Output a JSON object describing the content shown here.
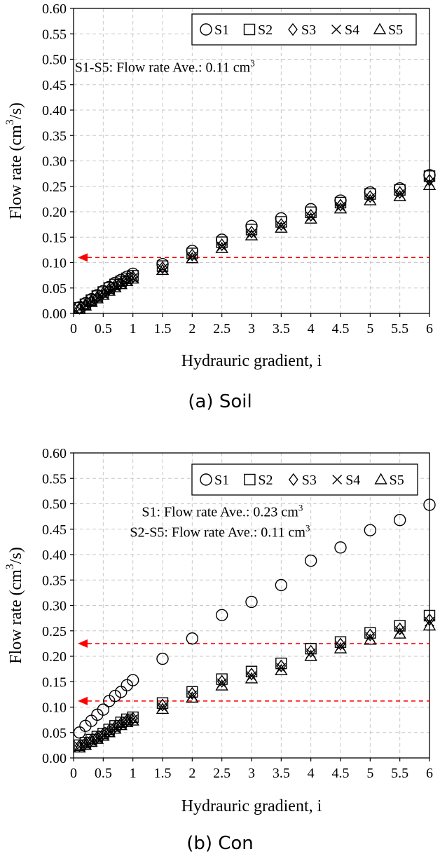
{
  "chart_data": [
    {
      "type": "scatter",
      "caption": "(a) Soil",
      "xlabel": "Hydrauric gradient, i",
      "ylabel": "Flow rate (cm³/s)",
      "xlim": [
        0,
        6
      ],
      "ylim": [
        0,
        0.6
      ],
      "x_ticks": [
        0,
        0.5,
        1,
        1.5,
        2,
        2.5,
        3,
        3.5,
        4,
        4.5,
        5,
        5.5,
        6
      ],
      "x_tick_labels": [
        "0",
        "0.5",
        "1",
        "1.5",
        "2",
        "2.5",
        "3",
        "3.5",
        "4",
        "4.5",
        "5",
        "5.5",
        "6"
      ],
      "y_ticks": [
        0,
        0.05,
        0.1,
        0.15,
        0.2,
        0.25,
        0.3,
        0.35,
        0.4,
        0.45,
        0.5,
        0.55,
        0.6
      ],
      "y_tick_labels": [
        "0.00",
        "0.05",
        "0.10",
        "0.15",
        "0.20",
        "0.25",
        "0.30",
        "0.35",
        "0.40",
        "0.45",
        "0.50",
        "0.55",
        "0.60"
      ],
      "grid": true,
      "legend_position": "top-right",
      "x": [
        0.1,
        0.2,
        0.3,
        0.4,
        0.5,
        0.6,
        0.7,
        0.8,
        0.9,
        1.0,
        1.5,
        2.0,
        2.5,
        3.0,
        3.5,
        4.0,
        4.5,
        5.0,
        5.5,
        6.0
      ],
      "series": [
        {
          "name": "S1",
          "marker": "circle",
          "values": [
            0.012,
            0.02,
            0.028,
            0.036,
            0.044,
            0.052,
            0.06,
            0.066,
            0.072,
            0.078,
            0.097,
            0.123,
            0.145,
            0.172,
            0.187,
            0.205,
            0.222,
            0.238,
            0.246,
            0.272
          ]
        },
        {
          "name": "S2",
          "marker": "square",
          "values": [
            0.011,
            0.018,
            0.026,
            0.034,
            0.042,
            0.05,
            0.057,
            0.063,
            0.069,
            0.074,
            0.093,
            0.118,
            0.14,
            0.165,
            0.18,
            0.199,
            0.218,
            0.235,
            0.243,
            0.27
          ]
        },
        {
          "name": "S3",
          "marker": "diamond",
          "values": [
            0.01,
            0.017,
            0.025,
            0.032,
            0.04,
            0.048,
            0.055,
            0.061,
            0.067,
            0.072,
            0.09,
            0.115,
            0.135,
            0.16,
            0.175,
            0.193,
            0.213,
            0.23,
            0.238,
            0.262
          ]
        },
        {
          "name": "S4",
          "marker": "x",
          "values": [
            0.009,
            0.016,
            0.024,
            0.031,
            0.038,
            0.046,
            0.053,
            0.059,
            0.065,
            0.07,
            0.088,
            0.112,
            0.132,
            0.157,
            0.172,
            0.19,
            0.21,
            0.227,
            0.235,
            0.258
          ]
        },
        {
          "name": "S5",
          "marker": "triangle",
          "values": [
            0.008,
            0.015,
            0.022,
            0.029,
            0.036,
            0.044,
            0.051,
            0.057,
            0.063,
            0.068,
            0.085,
            0.108,
            0.128,
            0.153,
            0.168,
            0.186,
            0.206,
            0.222,
            0.23,
            0.252
          ]
        }
      ],
      "reference_lines": [
        {
          "y": 0.11,
          "color": "#ff0000",
          "style": "dashed",
          "arrow": "left"
        }
      ],
      "annotations": [
        {
          "text": "S1-S5:  Flow rate Ave.: 0.11  cm³",
          "x": 0.02,
          "y": 0.475
        }
      ]
    },
    {
      "type": "scatter",
      "caption": "(b) Con",
      "xlabel": "Hydrauric gradient, i",
      "ylabel": "Flow rate (cm³/s)",
      "xlim": [
        0,
        6
      ],
      "ylim": [
        0,
        0.6
      ],
      "x_ticks": [
        0,
        0.5,
        1,
        1.5,
        2,
        2.5,
        3,
        3.5,
        4,
        4.5,
        5,
        5.5,
        6
      ],
      "x_tick_labels": [
        "0",
        "0.5",
        "1",
        "1.5",
        "2",
        "2.5",
        "3",
        "3.5",
        "4",
        "4.5",
        "5",
        "5.5",
        "6"
      ],
      "y_ticks": [
        0,
        0.05,
        0.1,
        0.15,
        0.2,
        0.25,
        0.3,
        0.35,
        0.4,
        0.45,
        0.5,
        0.55,
        0.6
      ],
      "y_tick_labels": [
        "0.00",
        "0.05",
        "0.10",
        "0.15",
        "0.20",
        "0.25",
        "0.30",
        "0.35",
        "0.40",
        "0.45",
        "0.50",
        "0.55",
        "0.60"
      ],
      "grid": true,
      "legend_position": "top-right",
      "x": [
        0.1,
        0.2,
        0.3,
        0.4,
        0.5,
        0.6,
        0.7,
        0.8,
        0.9,
        1.0,
        1.5,
        2.0,
        2.5,
        3.0,
        3.5,
        4.0,
        4.5,
        5.0,
        5.5,
        6.0
      ],
      "series": [
        {
          "name": "S1",
          "marker": "circle",
          "values": [
            0.05,
            0.063,
            0.073,
            0.085,
            0.095,
            0.112,
            0.122,
            0.13,
            0.143,
            0.153,
            0.195,
            0.235,
            0.281,
            0.307,
            0.34,
            0.388,
            0.414,
            0.448,
            0.468,
            0.498
          ]
        },
        {
          "name": "S2",
          "marker": "square",
          "values": [
            0.025,
            0.03,
            0.036,
            0.042,
            0.048,
            0.056,
            0.063,
            0.07,
            0.076,
            0.08,
            0.108,
            0.13,
            0.155,
            0.17,
            0.186,
            0.215,
            0.228,
            0.246,
            0.26,
            0.28
          ]
        },
        {
          "name": "S3",
          "marker": "diamond",
          "values": [
            0.024,
            0.029,
            0.035,
            0.041,
            0.047,
            0.054,
            0.061,
            0.068,
            0.074,
            0.078,
            0.104,
            0.127,
            0.151,
            0.165,
            0.181,
            0.21,
            0.224,
            0.242,
            0.254,
            0.272
          ]
        },
        {
          "name": "S4",
          "marker": "x",
          "values": [
            0.022,
            0.027,
            0.033,
            0.039,
            0.045,
            0.052,
            0.059,
            0.066,
            0.072,
            0.076,
            0.1,
            0.123,
            0.147,
            0.161,
            0.177,
            0.206,
            0.22,
            0.238,
            0.25,
            0.268
          ]
        },
        {
          "name": "S5",
          "marker": "triangle",
          "values": [
            0.02,
            0.025,
            0.031,
            0.037,
            0.043,
            0.05,
            0.057,
            0.064,
            0.07,
            0.073,
            0.096,
            0.118,
            0.142,
            0.156,
            0.172,
            0.2,
            0.215,
            0.232,
            0.244,
            0.26
          ]
        }
      ],
      "reference_lines": [
        {
          "y": 0.225,
          "color": "#ff0000",
          "style": "dashed",
          "arrow": "left"
        },
        {
          "y": 0.112,
          "color": "#ff0000",
          "style": "dashed",
          "arrow": "left"
        }
      ],
      "annotations": [
        {
          "text": "S1: Flow rate Ave.: 0.23  cm³",
          "x": 1.15,
          "y": 0.475
        },
        {
          "text": "S2-S5: Flow rate Ave.: 0.11  cm³",
          "x": 0.95,
          "y": 0.435
        }
      ]
    }
  ]
}
